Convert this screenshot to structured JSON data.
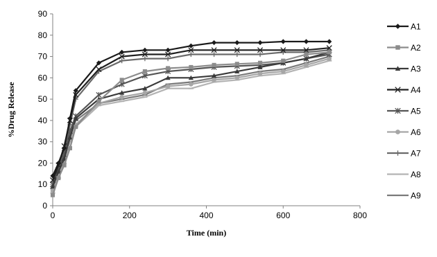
{
  "chart_data": {
    "type": "line",
    "title": "",
    "xlabel": "Time (min)",
    "ylabel": "%Drug Release",
    "xlim": [
      0,
      800
    ],
    "ylim": [
      0,
      90
    ],
    "xticks": [
      0,
      200,
      400,
      600,
      800
    ],
    "yticks": [
      0,
      10,
      20,
      30,
      40,
      50,
      60,
      70,
      80,
      90
    ],
    "grid": false,
    "legend_position": "right",
    "x": [
      0,
      15,
      30,
      45,
      60,
      120,
      180,
      240,
      300,
      360,
      420,
      480,
      540,
      600,
      660,
      720
    ],
    "series": [
      {
        "name": "A1",
        "marker": "diamond",
        "color": "#1a1a1a",
        "values": [
          14,
          20,
          27,
          41,
          54,
          67,
          72,
          73,
          73,
          75,
          76.5,
          76.5,
          76.5,
          77,
          77,
          77
        ]
      },
      {
        "name": "A2",
        "marker": "square",
        "color": "#8c8c8c",
        "values": [
          5,
          13,
          19,
          27,
          37,
          49,
          59,
          63,
          64.5,
          65,
          66,
          66.5,
          67,
          68,
          71,
          72
        ]
      },
      {
        "name": "A3",
        "marker": "triangle",
        "color": "#3a3a3a",
        "values": [
          9,
          16,
          22,
          32,
          41,
          50,
          53,
          55,
          60,
          60,
          61,
          63,
          65,
          67,
          69,
          72
        ]
      },
      {
        "name": "A4",
        "marker": "x",
        "color": "#202020",
        "values": [
          12,
          19,
          28,
          40,
          52,
          64,
          70,
          71,
          71,
          73,
          73,
          73,
          73,
          73,
          73,
          74
        ]
      },
      {
        "name": "A5",
        "marker": "asterisk",
        "color": "#555555",
        "values": [
          10,
          17,
          24,
          35,
          42,
          52,
          57,
          61,
          63,
          64,
          65,
          65.5,
          66,
          67,
          69,
          71
        ]
      },
      {
        "name": "A6",
        "marker": "circle",
        "color": "#a6a6a6",
        "values": [
          7,
          14,
          21,
          31,
          38,
          48,
          51,
          53,
          56,
          57,
          59,
          60,
          62,
          63,
          66,
          69
        ]
      },
      {
        "name": "A7",
        "marker": "plus",
        "color": "#6a6a6a",
        "values": [
          11,
          18,
          26,
          38,
          50,
          63,
          68,
          69,
          69,
          71,
          71,
          71,
          71,
          72,
          72,
          73
        ]
      },
      {
        "name": "A8",
        "marker": "dash",
        "color": "#b3b3b3",
        "values": [
          6,
          13,
          20,
          30,
          37,
          47,
          49,
          51,
          55,
          55,
          58,
          59,
          61,
          62,
          65,
          68
        ]
      },
      {
        "name": "A9",
        "marker": "dash",
        "color": "#7a7a7a",
        "values": [
          8,
          15,
          22,
          33,
          40,
          48,
          50,
          52,
          57,
          58,
          60,
          61,
          63,
          64,
          67,
          70
        ]
      }
    ]
  }
}
